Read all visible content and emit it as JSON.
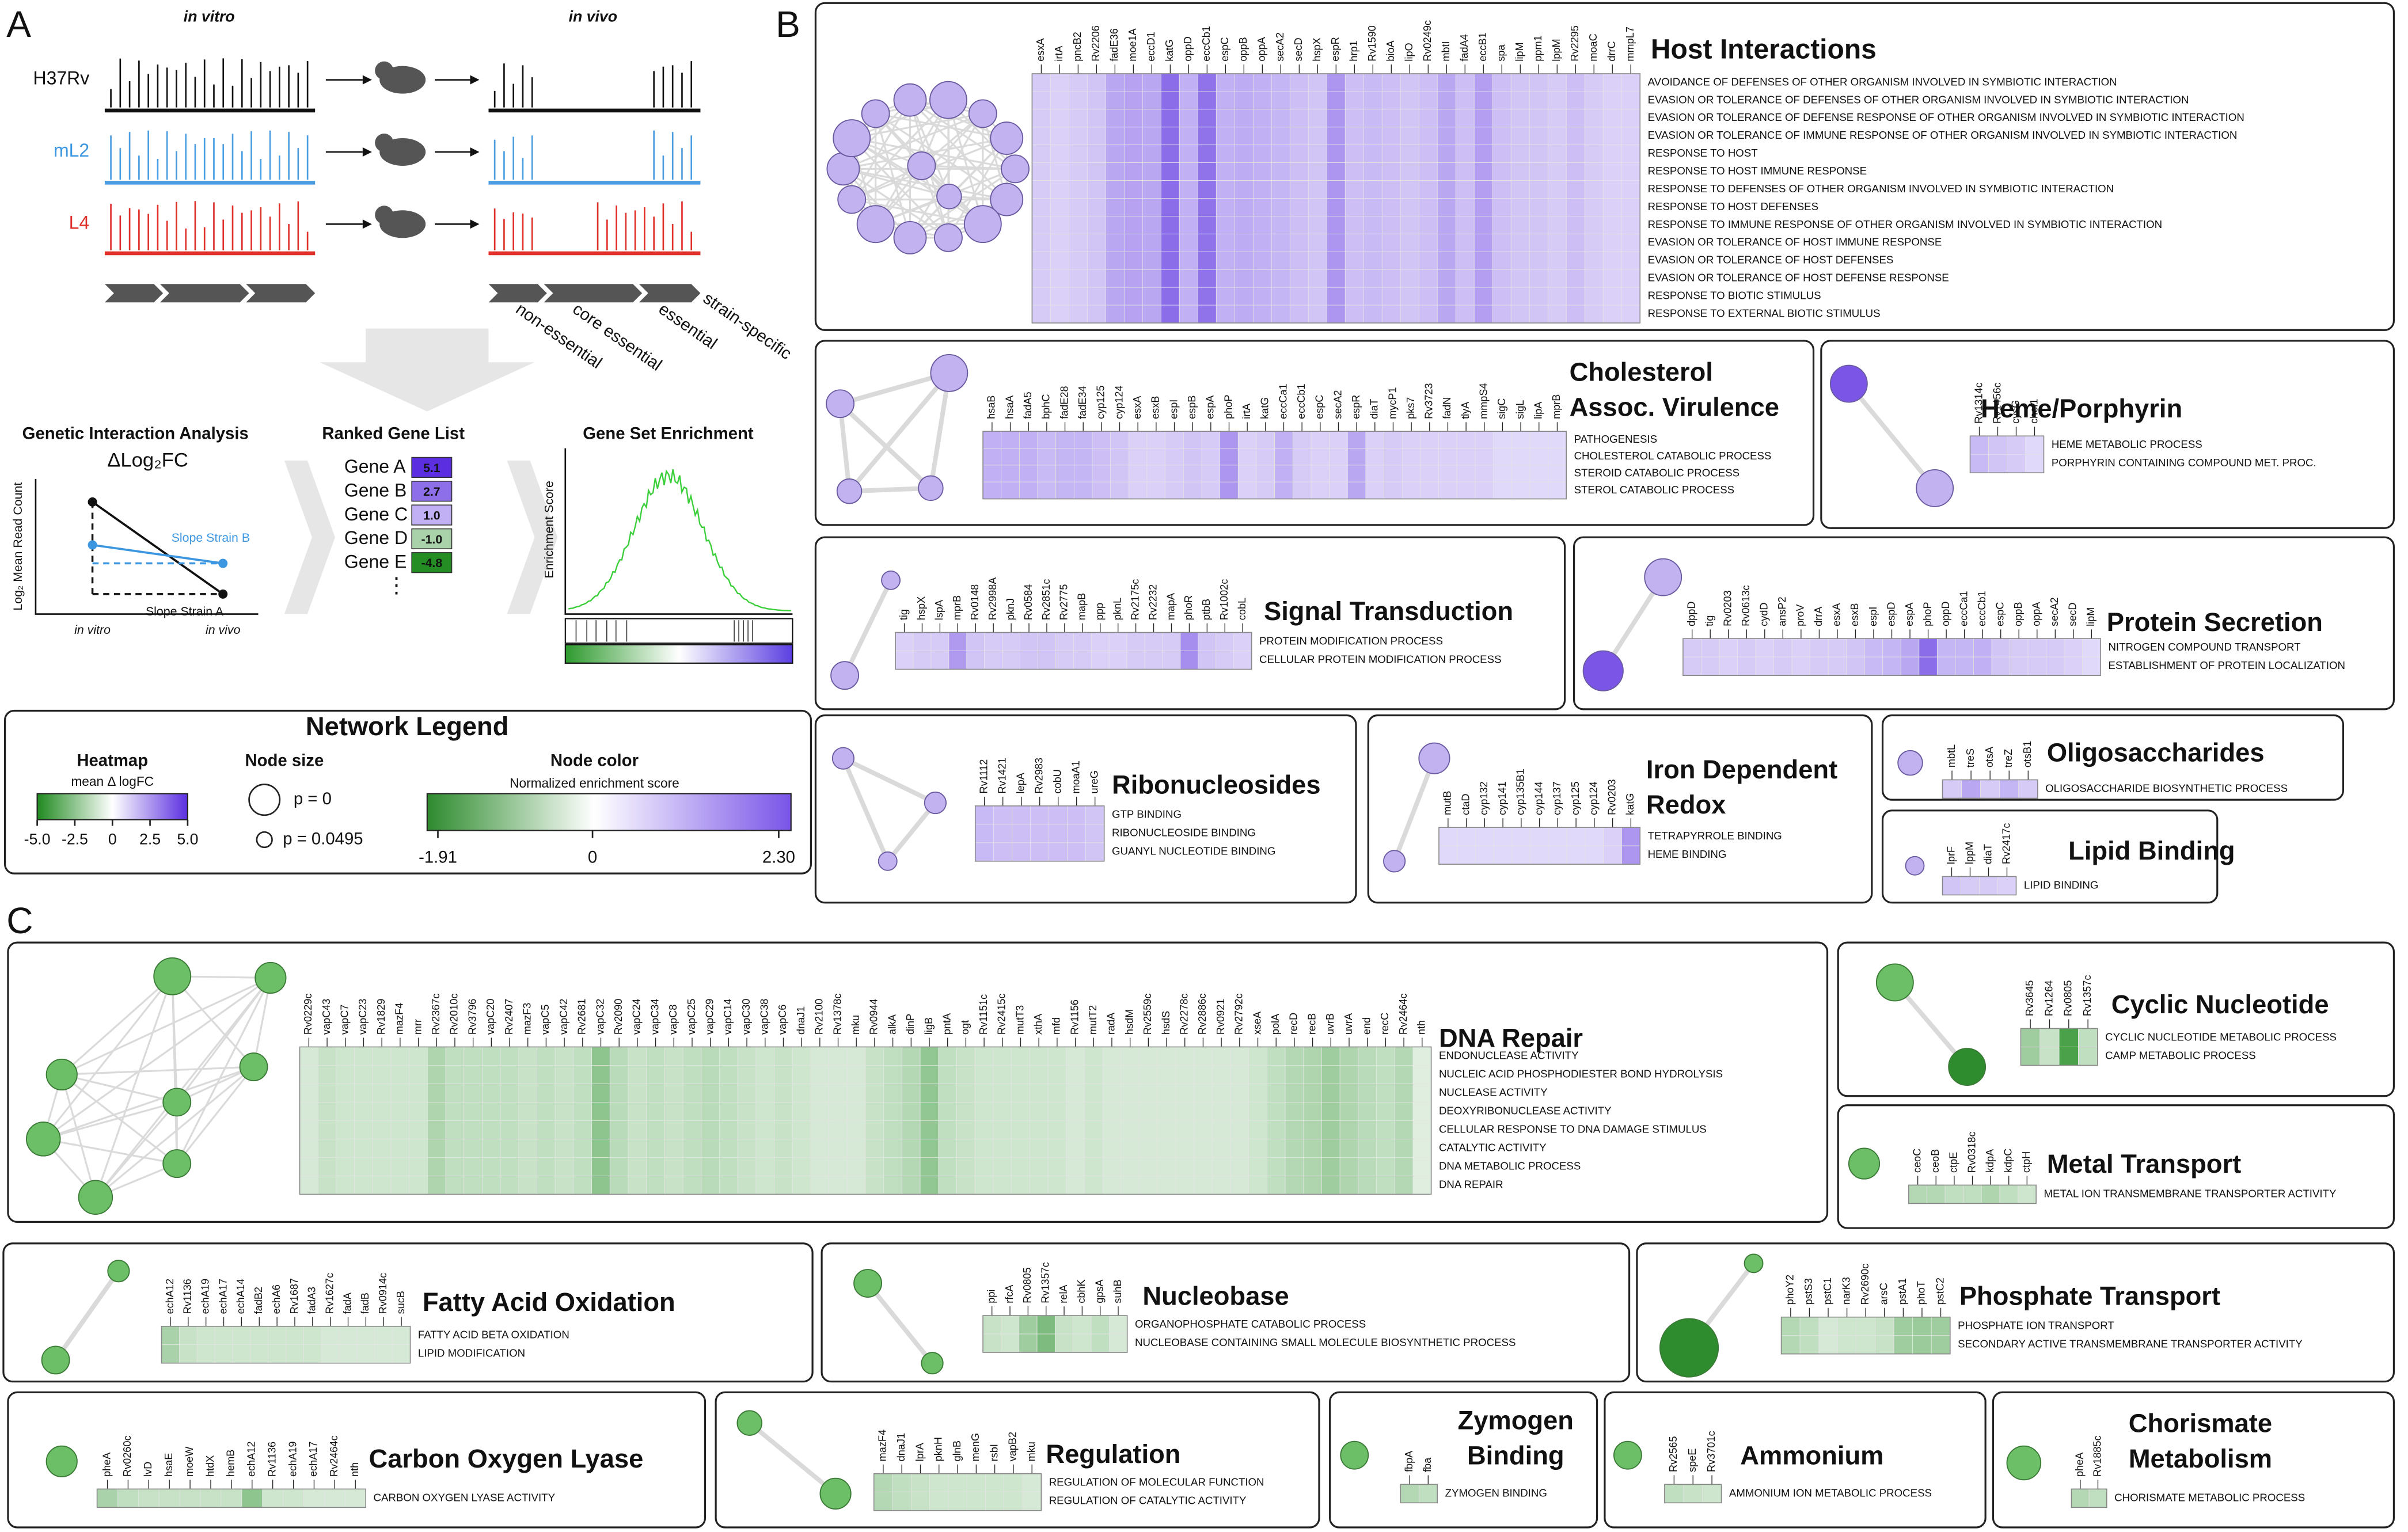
{
  "panel_a": {
    "label": "A",
    "in_vitro": "in vitro",
    "in_vivo": "in vivo",
    "strains": [
      "H37Rv",
      "mL2",
      "L4"
    ],
    "categories": [
      "non-essential",
      "core essential",
      "essential",
      "strain-specific"
    ],
    "gi_title": "Genetic Interaction Analysis",
    "delta": "ΔLog₂FC",
    "y_label": "Log₂ Mean Read Count",
    "slope_b": "Slope Strain B",
    "slope_a": "Slope Strain A",
    "x_labels": [
      "in vitro",
      "in vivo"
    ],
    "ranked_title": "Ranked Gene List",
    "ranked_genes": [
      "Gene A",
      "Gene B",
      "Gene C",
      "Gene D",
      "Gene E"
    ],
    "ranked_values": [
      5.1,
      2.7,
      1,
      -1,
      -4.8
    ],
    "ranked_value_labels": [
      "5.1",
      "2.7",
      "1.0",
      "-1.0",
      "-4.8"
    ],
    "ellipsis": "⋮",
    "gse_title": "Gene Set Enrichment",
    "es_label": "Enrichment Score"
  },
  "legend": {
    "title": "Network Legend",
    "heatmap_title": "Heatmap",
    "heatmap_sub": "mean Δ logFC",
    "heatmap_lim": [
      -5,
      5
    ],
    "heatmap_ticks": [
      {
        "value": -5,
        "label": "-5.0"
      },
      -2.5,
      0,
      2.5,
      {
        "value": 5,
        "label": "5.0"
      }
    ],
    "node_size_title": "Node size",
    "p_labels": [
      "p = 0",
      "p = 0.0495"
    ],
    "node_color_title": "Node color",
    "node_color_sub": "Normalized enrichment score",
    "nes_lim": [
      -1.91,
      2.3
    ],
    "nes_ticks": [
      -1.91,
      0,
      {
        "value": 2.3,
        "label": "2.30"
      }
    ]
  },
  "panel_b": {
    "label": "B",
    "sets": [
      {
        "title": [
          "Host Interactions"
        ],
        "genes": [
          "esxA",
          "irtA",
          "pncB2",
          "Rv2206",
          "fadE36",
          "moe1A",
          "eccD1",
          "katG",
          "oppD",
          "eccCb1",
          "espC",
          "oppB",
          "oppA",
          "secA2",
          "secD",
          "hspX",
          "espR",
          "hrp1",
          "Rv1590",
          "bioA",
          "lipO",
          "Rv0249c",
          "mbtI",
          "fadA4",
          "eccB1",
          "spa",
          "lipM",
          "ppm1",
          "lppM",
          "Rv2295",
          "moaC",
          "drrC",
          "mmpL7"
        ],
        "values": [
          0.5,
          0.4,
          0.5,
          0.6,
          1.2,
          1.3,
          1.2,
          2.8,
          1.0,
          2.6,
          1.0,
          1.1,
          1.0,
          0.9,
          0.7,
          0.6,
          1.6,
          0.7,
          0.8,
          0.7,
          0.6,
          0.7,
          1.2,
          0.7,
          1.4,
          0.7,
          0.6,
          0.6,
          0.5,
          0.7,
          0.5,
          0.4,
          0.4
        ],
        "terms": [
          "AVOIDANCE OF DEFENSES OF OTHER ORGANISM INVOLVED IN SYMBIOTIC INTERACTION",
          "EVASION OR TOLERANCE OF DEFENSES OF OTHER ORGANISM INVOLVED IN SYMBIOTIC INTERACTION",
          "EVASION OR TOLERANCE OF DEFENSE RESPONSE OF OTHER ORGANISM INVOLVED IN SYMBIOTIC INTERACTION",
          "EVASION OR TOLERANCE OF IMMUNE RESPONSE OF OTHER ORGANISM INVOLVED IN SYMBIOTIC INTERACTION",
          "RESPONSE TO HOST",
          "RESPONSE TO HOST IMMUNE RESPONSE",
          "RESPONSE TO DEFENSES OF OTHER ORGANISM INVOLVED IN SYMBIOTIC INTERACTION",
          "RESPONSE TO HOST DEFENSES",
          "RESPONSE TO IMMUNE RESPONSE OF OTHER ORGANISM INVOLVED IN SYMBIOTIC INTERACTION",
          "EVASION OR TOLERANCE OF HOST IMMUNE RESPONSE",
          "EVASION OR TOLERANCE OF HOST DEFENSES",
          "EVASION OR TOLERANCE OF HOST DEFENSE RESPONSE",
          "RESPONSE TO BIOTIC STIMULUS",
          "RESPONSE TO EXTERNAL BIOTIC STIMULUS"
        ]
      },
      {
        "title": [
          "Cholesterol",
          "Assoc. Virulence"
        ],
        "genes": [
          "hsaB",
          "hsaA",
          "fadA5",
          "bphC",
          "fadE28",
          "fadE34",
          "cyp125",
          "cyp124",
          "esxA",
          "esxB",
          "espI",
          "espB",
          "espA",
          "phoP",
          "irtA",
          "katG",
          "eccCa1",
          "eccCb1",
          "espC",
          "secA2",
          "espR",
          "diaT",
          "mycP1",
          "pks7",
          "Rv3723",
          "fadN",
          "tlyA",
          "mmpS4",
          "sigC",
          "sigL",
          "lipA",
          "mprB"
        ],
        "values": [
          1.0,
          1.0,
          1.0,
          0.8,
          0.9,
          0.9,
          0.7,
          0.6,
          0.4,
          0.4,
          0.5,
          0.6,
          0.5,
          1.6,
          0.4,
          0.5,
          1.0,
          0.5,
          0.4,
          0.4,
          1.2,
          0.4,
          0.5,
          0.4,
          0.4,
          0.4,
          0.4,
          0.4,
          0.3,
          0.3,
          0.3,
          0.3
        ],
        "terms": [
          "PATHOGENESIS",
          "CHOLESTEROL CATABOLIC PROCESS",
          "STEROID CATABOLIC PROCESS",
          "STEROL CATABOLIC PROCESS"
        ]
      },
      {
        "title": [
          "Heme/Porphyrin"
        ],
        "genes": [
          "Rv1314c",
          "Rv1456c",
          "cysG",
          "chel1"
        ],
        "values": [
          0.8,
          0.6,
          0.5,
          0.3
        ],
        "terms": [
          "HEME METABOLIC PROCESS",
          "PORPHYRIN CONTAINING COMPOUND MET. PROC."
        ]
      },
      {
        "title": [
          "Signal Transduction"
        ],
        "genes": [
          "tig",
          "hspX",
          "lspA",
          "mprB",
          "Rv0148",
          "Rv2998A",
          "pknJ",
          "Rv0584",
          "Rv2851c",
          "Rv2775",
          "mapB",
          "ppp",
          "pknL",
          "Rv2175c",
          "Rv2232",
          "mapA",
          "phoR",
          "ptbB",
          "Rv1002c",
          "cobL"
        ],
        "values": [
          0.4,
          0.5,
          0.5,
          1.5,
          0.6,
          0.5,
          0.5,
          0.6,
          0.6,
          0.5,
          0.5,
          0.4,
          0.4,
          0.5,
          0.5,
          0.5,
          1.8,
          0.6,
          0.5,
          0.4
        ],
        "terms": [
          "PROTEIN MODIFICATION PROCESS",
          "CELLULAR PROTEIN MODIFICATION PROCESS"
        ]
      },
      {
        "title": [
          "Protein Secretion"
        ],
        "genes": [
          "dppD",
          "tig",
          "Rv0203",
          "Rv0613c",
          "cydD",
          "ansP2",
          "proV",
          "drrA",
          "esxA",
          "esxB",
          "espI",
          "espD",
          "espA",
          "phoP",
          "oppD",
          "eccCa1",
          "eccCb1",
          "espC",
          "oppB",
          "oppA",
          "secA2",
          "secD",
          "lipM"
        ],
        "values": [
          0.5,
          0.5,
          0.4,
          0.5,
          0.4,
          0.5,
          0.4,
          0.5,
          0.5,
          0.6,
          0.8,
          0.9,
          1.2,
          2.8,
          0.9,
          0.9,
          1.0,
          0.6,
          0.5,
          0.5,
          0.5,
          0.4,
          0.3
        ],
        "terms": [
          "NITROGEN COMPOUND TRANSPORT",
          "ESTABLISHMENT OF PROTEIN LOCALIZATION"
        ]
      },
      {
        "title": [
          "Ribonucleosides"
        ],
        "genes": [
          "Rv1112",
          "Rv1421",
          "lepA",
          "Rv2983",
          "cobU",
          "moaA1",
          "ureG"
        ],
        "values": [
          0.8,
          0.7,
          0.7,
          0.7,
          0.7,
          0.7,
          0.6
        ],
        "terms": [
          "GTP BINDING",
          "RIBONUCLEOSIDE BINDING",
          "GUANYL NUCLEOTIDE BINDING"
        ]
      },
      {
        "title": [
          "Iron Dependent",
          "Redox"
        ],
        "genes": [
          "mutB",
          "ctaD",
          "cyp132",
          "cyp141",
          "cyp135B1",
          "cyp144",
          "cyp137",
          "cyp125",
          "cyp124",
          "Rv0203",
          "katG"
        ],
        "values": [
          0.3,
          0.3,
          0.3,
          0.3,
          0.3,
          0.3,
          0.3,
          0.3,
          0.3,
          0.4,
          1.6
        ],
        "terms": [
          "TETRAPYRROLE BINDING",
          "HEME BINDING"
        ]
      },
      {
        "title": [
          "Oligosaccharides"
        ],
        "genes": [
          "mbtL",
          "treS",
          "otsA",
          "treZ",
          "otsB1"
        ],
        "values": [
          0.5,
          1.2,
          0.5,
          0.9,
          0.5
        ],
        "terms": [
          "OLIGOSACCHARIDE BIOSYNTHETIC PROCESS"
        ]
      },
      {
        "title": [
          "Lipid Binding"
        ],
        "genes": [
          "lprF",
          "lppM",
          "diaT",
          "Rv2417c"
        ],
        "values": [
          0.6,
          0.5,
          0.5,
          0.4
        ],
        "terms": [
          "LIPID BINDING"
        ]
      }
    ]
  },
  "panel_c": {
    "label": "C",
    "sets": [
      {
        "title": [
          "DNA Repair"
        ],
        "genes": [
          "Rv0229c",
          "vapC43",
          "vapC7",
          "vapC23",
          "Rv1829",
          "mazF4",
          "mrr",
          "Rv2367c",
          "Rv2010c",
          "Rv3796",
          "vapC20",
          "Rv2407",
          "mazF3",
          "vapC5",
          "vapC42",
          "Rv2681",
          "vapC32",
          "Rv2090",
          "vapC24",
          "vapC34",
          "vapC8",
          "vapC25",
          "vapC29",
          "vapC14",
          "vapC30",
          "vapC38",
          "vapC6",
          "dnaJ1",
          "Rv2100",
          "Rv1378c",
          "mku",
          "Rv0944",
          "alkA",
          "dinP",
          "ligB",
          "pntA",
          "ogt",
          "Rv1151c",
          "Rv2415c",
          "mutT3",
          "xthA",
          "mfd",
          "Rv1156",
          "mutT2",
          "radA",
          "hsdM",
          "Rv2559c",
          "hsdS",
          "Rv2278c",
          "Rv2886c",
          "Rv0921",
          "Rv2792c",
          "xseA",
          "polA",
          "recD",
          "recB",
          "uvrB",
          "uvrA",
          "end",
          "recC",
          "Rv2464c",
          "nth"
        ],
        "values": [
          -0.3,
          -0.5,
          -0.4,
          -0.4,
          -0.4,
          -0.4,
          -0.4,
          -0.9,
          -0.6,
          -0.6,
          -0.6,
          -0.6,
          -0.5,
          -0.6,
          -0.5,
          -0.6,
          -1.6,
          -0.7,
          -0.5,
          -0.6,
          -0.5,
          -0.6,
          -0.7,
          -0.6,
          -0.5,
          -0.4,
          -0.5,
          -0.4,
          -0.3,
          -0.3,
          -0.3,
          -0.5,
          -0.6,
          -0.8,
          -1.5,
          -0.6,
          -0.5,
          -0.4,
          -0.4,
          -0.4,
          -0.4,
          -0.4,
          -0.3,
          -0.4,
          -0.3,
          -0.3,
          -0.3,
          -0.3,
          -0.3,
          -0.3,
          -0.3,
          -0.3,
          -0.4,
          -0.6,
          -0.8,
          -0.9,
          -1.2,
          -0.9,
          -0.7,
          -0.6,
          -0.8,
          -0.2
        ],
        "terms": [
          "ENDONUCLEASE ACTIVITY",
          "NUCLEIC ACID PHOSPHODIESTER BOND HYDROLYSIS",
          "NUCLEASE ACTIVITY",
          "DEOXYRIBONUCLEASE ACTIVITY",
          "CELLULAR RESPONSE TO DNA DAMAGE STIMULUS",
          "CATALYTIC ACTIVITY",
          "DNA METABOLIC PROCESS",
          "DNA REPAIR"
        ]
      },
      {
        "title": [
          "Cyclic Nucleotide"
        ],
        "genes": [
          "Rv3645",
          "Rv1264",
          "Rv0805",
          "Rv1357c"
        ],
        "values": [
          -1.2,
          -0.5,
          -3.5,
          -0.6
        ],
        "terms": [
          "CYCLIC NUCLEOTIDE METABOLIC PROCESS",
          "CAMP METABOLIC PROCESS"
        ]
      },
      {
        "title": [
          "Metal Transport"
        ],
        "genes": [
          "ceoC",
          "ceoB",
          "ctpE",
          "Rv0318c",
          "kdpA",
          "kdpC",
          "ctpH"
        ],
        "values": [
          -0.8,
          -0.8,
          -0.6,
          -0.6,
          -0.9,
          -0.6,
          -0.4
        ],
        "terms": [
          "METAL ION TRANSMEMBRANE TRANSPORTER ACTIVITY"
        ]
      },
      {
        "title": [
          "Fatty Acid Oxidation"
        ],
        "genes": [
          "echA12",
          "Rv1136",
          "echA19",
          "echA17",
          "echA14",
          "fadB2",
          "echA6",
          "Rv1687",
          "fadA3",
          "Rv1627c",
          "fadA",
          "fadB",
          "Rv0914c",
          "sucB"
        ],
        "values": [
          -1.0,
          -0.5,
          -0.4,
          -0.4,
          -0.4,
          -0.4,
          -0.4,
          -0.4,
          -0.4,
          -0.3,
          -0.3,
          -0.3,
          -0.3,
          -0.3
        ],
        "terms": [
          "FATTY ACID BETA OXIDATION",
          "LIPID MODIFICATION"
        ]
      },
      {
        "title": [
          "Nucleobase"
        ],
        "genes": [
          "ppi",
          "rfcA",
          "Rv0805",
          "Rv1357c",
          "relA",
          "cbhK",
          "gpsA",
          "suhB"
        ],
        "values": [
          -0.5,
          -0.4,
          -1.2,
          -2.0,
          -0.5,
          -0.4,
          -0.6,
          -0.3
        ],
        "terms": [
          "ORGANOPHOSPHATE CATABOLIC PROCESS",
          "NUCLEOBASE CONTAINING SMALL MOLECULE BIOSYNTHETIC PROCESS"
        ]
      },
      {
        "title": [
          "Phosphate Transport"
        ],
        "genes": [
          "phoY2",
          "pstS3",
          "pstC1",
          "narK3",
          "Rv2690c",
          "arsC",
          "pstA1",
          "phoT",
          "pstC2"
        ],
        "values": [
          -0.8,
          -0.6,
          -0.3,
          -0.4,
          -0.4,
          -0.5,
          -1.2,
          -1.3,
          -1.2
        ],
        "terms": [
          "PHOSPHATE ION TRANSPORT",
          "SECONDARY ACTIVE TRANSMEMBRANE TRANSPORTER ACTIVITY"
        ]
      },
      {
        "title": [
          "Carbon Oxygen Lyase"
        ],
        "genes": [
          "pheA",
          "Rv0260c",
          "lvD",
          "hsaE",
          "moeW",
          "htdX",
          "hemB",
          "echA12",
          "Rv1136",
          "echA19",
          "echA17",
          "Rv2464c",
          "nth"
        ],
        "values": [
          -1.0,
          -0.6,
          -0.5,
          -0.5,
          -0.5,
          -0.5,
          -0.5,
          -1.6,
          -0.4,
          -0.4,
          -0.3,
          -0.3,
          -0.3
        ],
        "terms": [
          "CARBON OXYGEN LYASE ACTIVITY"
        ]
      },
      {
        "title": [
          "Regulation"
        ],
        "genes": [
          "mazF4",
          "dnaJ1",
          "lprA",
          "pknH",
          "glnB",
          "menG",
          "rsbI",
          "vapB2",
          "mku"
        ],
        "values": [
          -0.8,
          -0.6,
          -0.5,
          -0.4,
          -0.4,
          -0.4,
          -0.4,
          -0.4,
          -0.3
        ],
        "terms": [
          "REGULATION OF MOLECULAR FUNCTION",
          "REGULATION OF CATALYTIC ACTIVITY"
        ]
      },
      {
        "title": [
          "Zymogen",
          "Binding"
        ],
        "genes": [
          "fbpA",
          "fba"
        ],
        "values": [
          -0.8,
          -0.6
        ],
        "terms": [
          "ZYMOGEN BINDING"
        ]
      },
      {
        "title": [
          "Ammonium"
        ],
        "genes": [
          "Rv2565",
          "speE",
          "Rv3701c"
        ],
        "values": [
          -0.6,
          -0.5,
          -0.4
        ],
        "terms": [
          "AMMONIUM ION METABOLIC PROCESS"
        ]
      },
      {
        "title": [
          "Chorismate",
          "Metabolism"
        ],
        "genes": [
          "pheA",
          "Rv1885c"
        ],
        "values": [
          -0.8,
          -0.6
        ],
        "terms": [
          "CHORISMATE METABOLIC PROCESS"
        ]
      }
    ]
  }
}
